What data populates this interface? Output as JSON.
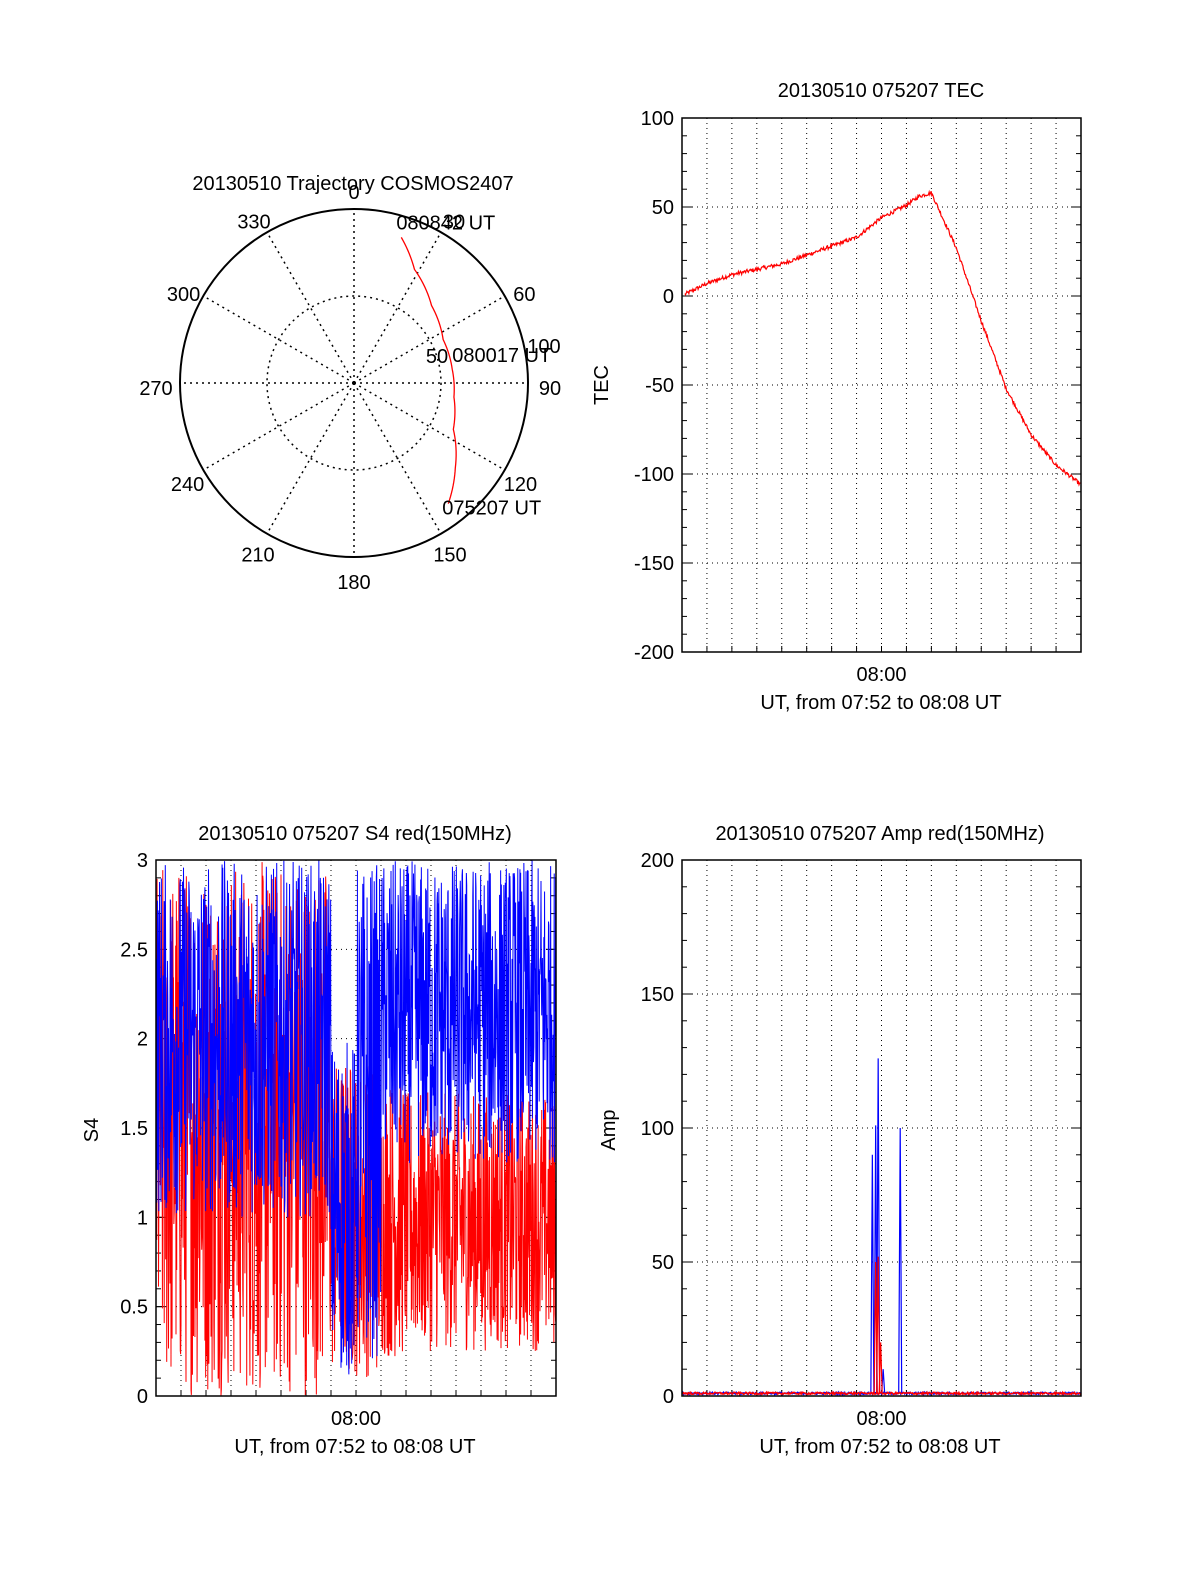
{
  "colors": {
    "red": "#ff0000",
    "blue": "#0000ff",
    "axis": "#000000",
    "grid": "#000000"
  },
  "chart_data": [
    {
      "id": "polar",
      "type": "scatter",
      "subtype": "polar-trajectory",
      "title": "20130510 Trajectory COSMOS2407",
      "azimuth_labels": [
        "0",
        "30",
        "60",
        "90",
        "120",
        "150",
        "180",
        "210",
        "240",
        "270",
        "300",
        "330"
      ],
      "radius_labels": [
        "50",
        "100"
      ],
      "trajectory": {
        "color": "red",
        "points": [
          {
            "az": 18,
            "r": 88
          },
          {
            "az": 28,
            "r": 74
          },
          {
            "az": 45,
            "r": 63
          },
          {
            "az": 64,
            "r": 57
          },
          {
            "az": 82,
            "r": 57
          },
          {
            "az": 98,
            "r": 58
          },
          {
            "az": 115,
            "r": 63
          },
          {
            "az": 130,
            "r": 76
          },
          {
            "az": 142,
            "r": 88
          }
        ]
      },
      "annotations": [
        {
          "text": "080842 UT",
          "az": 18,
          "r": 88
        },
        {
          "text": "080017 UT",
          "az": 82,
          "r": 57
        },
        {
          "text": "075207 UT",
          "az": 142,
          "r": 88
        }
      ]
    },
    {
      "id": "tec",
      "type": "line",
      "title": "20130510 075207 TEC",
      "ylabel": "TEC",
      "xlabel": "UT, from 07:52 to 08:08 UT",
      "x_tick_labels": [
        "08:00"
      ],
      "x_range": [
        "07:52",
        "08:08"
      ],
      "ylim": [
        -200,
        100
      ],
      "y_ticks": [
        100,
        50,
        0,
        -50,
        -100,
        -150,
        -200
      ],
      "grid": true,
      "series": [
        {
          "color": "red",
          "x": [
            "07:52:07",
            "07:53:00",
            "07:54:00",
            "07:55:00",
            "07:56:00",
            "07:57:00",
            "07:58:00",
            "07:59:00",
            "08:00:00",
            "08:01:00",
            "08:01:30",
            "08:02:00",
            "08:03:00",
            "08:04:00",
            "08:05:00",
            "08:06:00",
            "08:07:00",
            "08:08:00"
          ],
          "y": [
            1,
            7,
            12,
            15,
            18,
            23,
            28,
            33,
            44,
            51,
            56,
            58,
            27,
            -14,
            -52,
            -78,
            -95,
            -106
          ]
        }
      ]
    },
    {
      "id": "s4",
      "type": "line",
      "title": "20130510 075207 S4 red(150MHz)",
      "ylabel": "S4",
      "xlabel": "UT, from 07:52 to 08:08 UT",
      "x_tick_labels": [
        "08:00"
      ],
      "x_range": [
        "07:52",
        "08:08"
      ],
      "ylim": [
        0,
        3
      ],
      "y_ticks": [
        "3",
        "2.5",
        "2",
        "1.5",
        "1",
        "0.5",
        "0"
      ],
      "grid": true,
      "series": [
        {
          "color": "red",
          "segments": [
            {
              "from": "07:52",
              "to": "07:59",
              "min": 0.0,
              "max": 3.0
            },
            {
              "from": "07:59",
              "to": "08:01",
              "min": 0.1,
              "max": 1.9
            },
            {
              "from": "08:01",
              "to": "08:02",
              "min": 0.2,
              "max": 1.8
            },
            {
              "from": "08:02",
              "to": "08:08",
              "min": 0.25,
              "max": 1.7
            }
          ]
        },
        {
          "color": "blue",
          "segments": [
            {
              "from": "07:52",
              "to": "07:59",
              "min": 1.0,
              "max": 3.0
            },
            {
              "from": "07:59",
              "to": "08:00",
              "min": 0.1,
              "max": 2.0
            },
            {
              "from": "08:00",
              "to": "08:01",
              "min": 0.2,
              "max": 3.0
            },
            {
              "from": "08:01",
              "to": "08:08",
              "min": 1.3,
              "max": 3.0
            }
          ]
        }
      ]
    },
    {
      "id": "amp",
      "type": "line",
      "title": "20130510 075207 Amp red(150MHz)",
      "ylabel": "Amp",
      "xlabel": "UT, from 07:52 to 08:08 UT",
      "x_tick_labels": [
        "08:00"
      ],
      "x_range": [
        "07:52",
        "08:08"
      ],
      "ylim": [
        0,
        200
      ],
      "y_ticks": [
        200,
        150,
        100,
        50,
        0
      ],
      "grid": true,
      "series": [
        {
          "color": "blue",
          "baseline": 1,
          "spikes": [
            {
              "x": "07:59:38",
              "peak": 90
            },
            {
              "x": "07:59:46",
              "peak": 101
            },
            {
              "x": "07:59:52",
              "peak": 126
            },
            {
              "x": "08:00:04",
              "peak": 10
            },
            {
              "x": "08:00:45",
              "peak": 100
            }
          ]
        },
        {
          "color": "red",
          "baseline": 1,
          "spikes": [
            {
              "x": "07:59:46",
              "peak": 50
            },
            {
              "x": "07:59:52",
              "peak": 52
            },
            {
              "x": "07:59:58",
              "peak": 20
            }
          ]
        }
      ]
    }
  ]
}
